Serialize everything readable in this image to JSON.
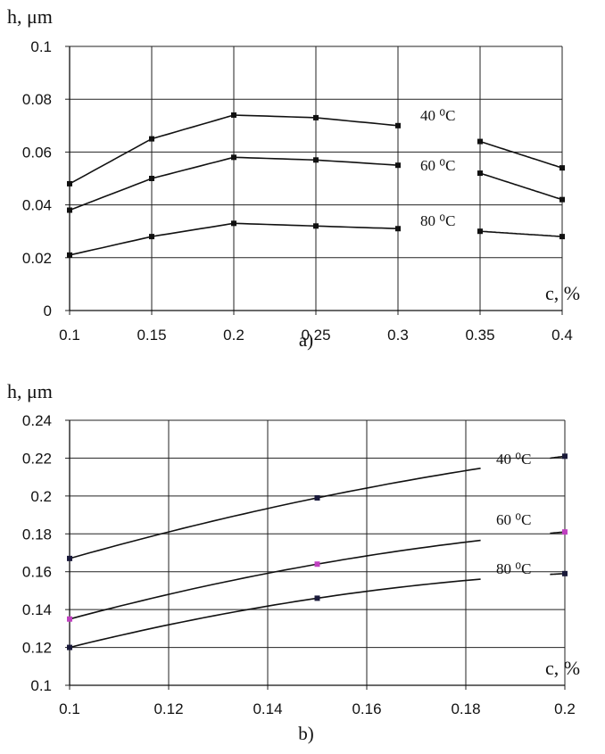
{
  "chart_data": [
    {
      "type": "line",
      "caption": "a)",
      "ylabel": "h, μm",
      "xlabel": "c, %",
      "x": [
        0.1,
        0.15,
        0.2,
        0.25,
        0.3,
        0.35,
        0.4
      ],
      "xticks": [
        "0.1",
        "0.15",
        "0.2",
        "0.25",
        "0.3",
        "0.35",
        "0.4"
      ],
      "yticks": [
        "0",
        "0.02",
        "0.04",
        "0.06",
        "0.08",
        "0.1"
      ],
      "xlim": [
        0.1,
        0.4
      ],
      "ylim": [
        0,
        0.1
      ],
      "grid": true,
      "marker": "square",
      "series": [
        {
          "name": "40 ⁰C",
          "values": [
            0.048,
            0.065,
            0.074,
            0.073,
            0.07,
            0.064,
            0.054
          ]
        },
        {
          "name": "60 ⁰C",
          "values": [
            0.038,
            0.05,
            0.058,
            0.057,
            0.055,
            0.052,
            0.042
          ]
        },
        {
          "name": "80 ⁰C",
          "values": [
            0.021,
            0.028,
            0.033,
            0.032,
            0.031,
            0.03,
            0.028
          ]
        }
      ]
    },
    {
      "type": "line",
      "caption": "b)",
      "ylabel": "h, μm",
      "xlabel": "c, %",
      "x": [
        0.1,
        0.15,
        0.2
      ],
      "xticks": [
        "0.1",
        "0.12",
        "0.14",
        "0.16",
        "0.18",
        "0.2"
      ],
      "yticks": [
        "0.1",
        "0.12",
        "0.14",
        "0.16",
        "0.18",
        "0.2",
        "0.22",
        "0.24"
      ],
      "xlim": [
        0.1,
        0.2
      ],
      "ylim": [
        0.1,
        0.24
      ],
      "grid": true,
      "marker": "square",
      "series": [
        {
          "name": "40 ⁰C",
          "values": [
            0.167,
            0.199,
            0.221
          ],
          "color": "#1a1a3a"
        },
        {
          "name": "60 ⁰C",
          "values": [
            0.135,
            0.164,
            0.181
          ],
          "color": "#c040c0"
        },
        {
          "name": "80 ⁰C",
          "values": [
            0.12,
            0.146,
            0.159
          ],
          "color": "#1a1a3a"
        }
      ]
    }
  ]
}
